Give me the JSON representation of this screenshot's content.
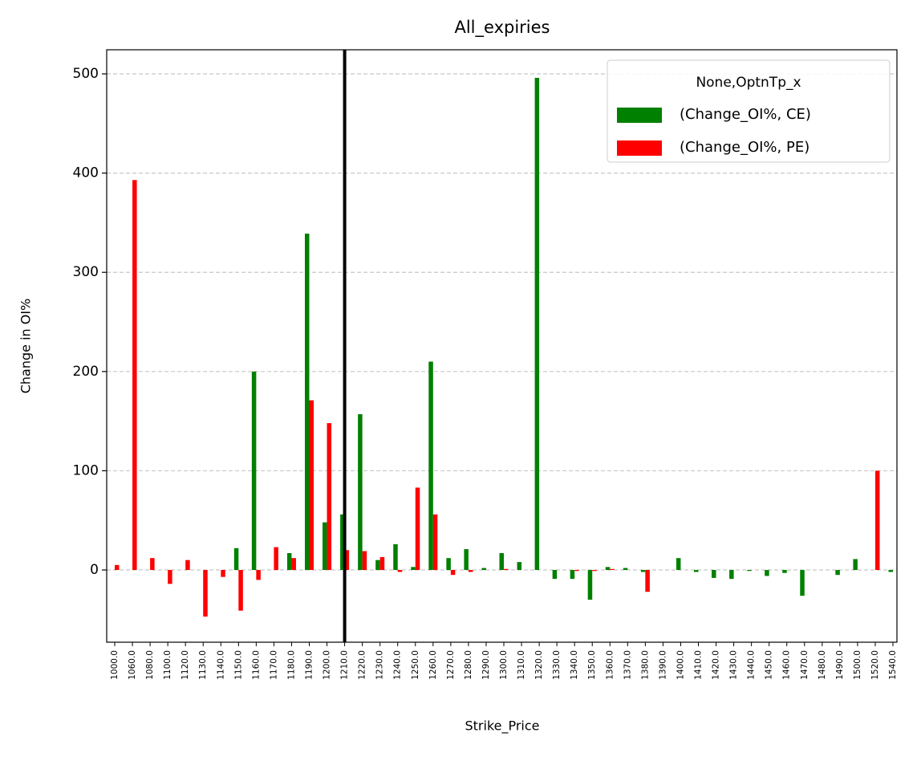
{
  "chart_data": {
    "type": "bar",
    "title": "All_expiries",
    "xlabel": "Strike_Price",
    "ylabel": "Change in OI%",
    "categories": [
      "1000.0",
      "1060.0",
      "1080.0",
      "1100.0",
      "1120.0",
      "1130.0",
      "1140.0",
      "1150.0",
      "1160.0",
      "1170.0",
      "1180.0",
      "1190.0",
      "1200.0",
      "1210.0",
      "1220.0",
      "1230.0",
      "1240.0",
      "1250.0",
      "1260.0",
      "1270.0",
      "1280.0",
      "1290.0",
      "1300.0",
      "1310.0",
      "1320.0",
      "1330.0",
      "1340.0",
      "1350.0",
      "1360.0",
      "1370.0",
      "1380.0",
      "1390.0",
      "1400.0",
      "1410.0",
      "1420.0",
      "1430.0",
      "1440.0",
      "1450.0",
      "1460.0",
      "1470.0",
      "1480.0",
      "1490.0",
      "1500.0",
      "1520.0",
      "1540.0"
    ],
    "series": [
      {
        "name": "(Change_OI%, CE)",
        "color": "#008000",
        "values": [
          0,
          0,
          0,
          0,
          0,
          0,
          0,
          22,
          200,
          0,
          17,
          339,
          48,
          56,
          157,
          10,
          26,
          3,
          210,
          12,
          21,
          2,
          17,
          8,
          496,
          -9,
          -9,
          -30,
          3,
          2,
          -2,
          0,
          12,
          -2,
          -8,
          -9,
          -1,
          -6,
          -3,
          -26,
          0,
          -5,
          11,
          0,
          -2
        ]
      },
      {
        "name": "(Change_OI%, PE)",
        "color": "#ff0000",
        "values": [
          5,
          393,
          12,
          -14,
          10,
          -47,
          -7,
          -41,
          -10,
          23,
          12,
          171,
          148,
          20,
          19,
          13,
          -2,
          83,
          56,
          -5,
          -2,
          0,
          1,
          0,
          0,
          0,
          -1,
          -1,
          1,
          0,
          -22,
          0,
          0,
          0,
          0,
          0,
          0,
          0,
          0,
          0,
          0,
          0,
          0,
          100,
          0
        ]
      }
    ],
    "legend_title": "None,OptnTp_x",
    "legend": "upper right",
    "ylim": [
      -72.8,
      524.3
    ],
    "yticks": [
      0,
      100,
      200,
      300,
      400,
      500
    ],
    "grid": true,
    "vline_at": "1210.0"
  }
}
